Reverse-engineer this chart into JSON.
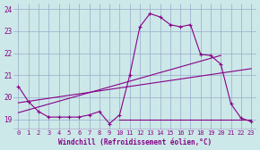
{
  "background_color": "#cce8e8",
  "grid_color": "#99aacc",
  "line_color": "#880088",
  "ylim": [
    18.55,
    24.25
  ],
  "xlim": [
    -0.5,
    23.5
  ],
  "yticks": [
    19,
    20,
    21,
    22,
    23,
    24
  ],
  "xticks": [
    0,
    1,
    2,
    3,
    4,
    5,
    6,
    7,
    8,
    9,
    10,
    11,
    12,
    13,
    14,
    15,
    16,
    17,
    18,
    19,
    20,
    21,
    22,
    23
  ],
  "xlabel": "Windchill (Refroidissement éolien,°C)",
  "series1_x": [
    0,
    1,
    2,
    3,
    4,
    5,
    6,
    7,
    8,
    9,
    10,
    11,
    12,
    13,
    14,
    15,
    16,
    17,
    18,
    19,
    20,
    21,
    22,
    23
  ],
  "series1_y": [
    20.5,
    19.8,
    19.35,
    19.1,
    19.1,
    19.1,
    19.1,
    19.2,
    19.35,
    18.8,
    19.2,
    21.0,
    23.2,
    23.8,
    23.65,
    23.3,
    23.2,
    23.3,
    21.95,
    21.9,
    21.5,
    19.7,
    19.05,
    18.9
  ],
  "series2_x": [
    10,
    11,
    12,
    13,
    14,
    15,
    16,
    17,
    18,
    19,
    20,
    21,
    22,
    23
  ],
  "series2_y": [
    19.0,
    19.0,
    19.0,
    19.0,
    19.0,
    19.0,
    19.0,
    19.0,
    19.0,
    19.0,
    19.0,
    19.0,
    19.0,
    19.0
  ],
  "series3_x": [
    0,
    20
  ],
  "series3_y": [
    19.3,
    21.9
  ],
  "series4_x": [
    0,
    23
  ],
  "series4_y": [
    19.75,
    21.3
  ]
}
